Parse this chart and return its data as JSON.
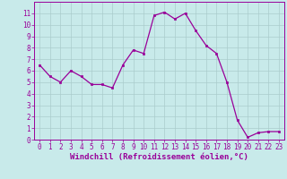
{
  "x": [
    0,
    1,
    2,
    3,
    4,
    5,
    6,
    7,
    8,
    9,
    10,
    11,
    12,
    13,
    14,
    15,
    16,
    17,
    18,
    19,
    20,
    21,
    22,
    23
  ],
  "y": [
    6.5,
    5.5,
    5.0,
    6.0,
    5.5,
    4.8,
    4.8,
    4.5,
    6.5,
    7.8,
    7.5,
    10.8,
    11.1,
    10.5,
    11.0,
    9.5,
    8.2,
    7.5,
    5.0,
    1.7,
    0.2,
    0.6,
    0.7,
    0.7
  ],
  "line_color": "#990099",
  "marker_color": "#990099",
  "bg_color": "#c8eaea",
  "grid_color": "#aacccc",
  "xlabel": "Windchill (Refroidissement éolien,°C)",
  "xlim": [
    -0.5,
    23.5
  ],
  "ylim": [
    0,
    12
  ],
  "yticks": [
    0,
    1,
    2,
    3,
    4,
    5,
    6,
    7,
    8,
    9,
    10,
    11
  ],
  "xticks": [
    0,
    1,
    2,
    3,
    4,
    5,
    6,
    7,
    8,
    9,
    10,
    11,
    12,
    13,
    14,
    15,
    16,
    17,
    18,
    19,
    20,
    21,
    22,
    23
  ],
  "tick_fontsize": 5.5,
  "xlabel_fontsize": 6.5
}
